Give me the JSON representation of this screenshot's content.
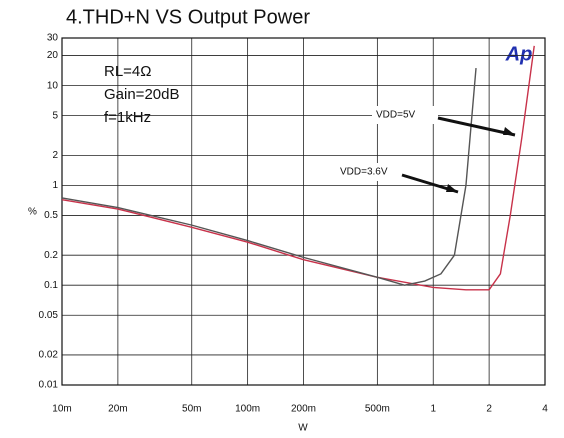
{
  "chart_data": {
    "type": "line",
    "title": "4.THD+N VS Output Power",
    "xlabel": "W",
    "ylabel": "%",
    "annotations": [
      "RL=4Ω",
      "Gain=20dB",
      "f=1kHz"
    ],
    "logo": "Ap",
    "xscale": "log",
    "yscale": "log",
    "grid": true,
    "xlim": [
      0.01,
      4
    ],
    "ylim": [
      0.01,
      30
    ],
    "xticks": [
      {
        "value": 0.01,
        "label": "10m"
      },
      {
        "value": 0.02,
        "label": "20m"
      },
      {
        "value": 0.05,
        "label": "50m"
      },
      {
        "value": 0.1,
        "label": "100m"
      },
      {
        "value": 0.2,
        "label": "200m"
      },
      {
        "value": 0.5,
        "label": "500m"
      },
      1,
      2,
      4
    ],
    "yticks": [
      0.01,
      0.02,
      0.05,
      0.1,
      0.2,
      0.5,
      1,
      2,
      5,
      10,
      20,
      30
    ],
    "series": [
      {
        "name": "VDD=5V",
        "color": "#c8324a",
        "x": [
          0.01,
          0.02,
          0.05,
          0.1,
          0.2,
          0.5,
          1,
          1.5,
          2,
          2.3,
          2.6,
          3,
          3.5
        ],
        "values": [
          0.72,
          0.58,
          0.38,
          0.27,
          0.18,
          0.12,
          0.095,
          0.09,
          0.09,
          0.13,
          0.5,
          3,
          25
        ]
      },
      {
        "name": "VDD=3.6V",
        "color": "#555555",
        "x": [
          0.01,
          0.02,
          0.05,
          0.1,
          0.2,
          0.5,
          0.7,
          0.9,
          1.1,
          1.3,
          1.5,
          1.7
        ],
        "values": [
          0.75,
          0.6,
          0.4,
          0.28,
          0.19,
          0.12,
          0.1,
          0.11,
          0.13,
          0.2,
          1,
          15
        ]
      }
    ]
  }
}
